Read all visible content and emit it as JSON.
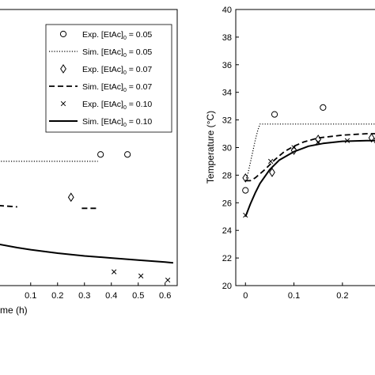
{
  "chart_data": [
    {
      "type": "scatter",
      "panel": "left",
      "title": "",
      "xlabel": "me (h)",
      "ylabel": "",
      "xlim": [
        -0.02,
        0.645
      ],
      "ylim": [
        20,
        40
      ],
      "x_ticks": [
        0.1,
        0.2,
        0.3,
        0.4,
        0.5,
        0.6
      ],
      "x_tick_labels": [
        "0.1",
        "0.2",
        "0.3",
        "0.4",
        "0.5",
        "0.6"
      ],
      "y_ticks": [],
      "grid": false,
      "legend": {
        "placement": "top-right",
        "entries": [
          {
            "label": "Exp. [EtAc]",
            "sub": "0",
            "suffix": " = 0.05",
            "marker": "circle",
            "line": "none"
          },
          {
            "label": "Sim. [EtAc]",
            "sub": "0",
            "suffix": " = 0.05",
            "marker": "none",
            "line": "dotted"
          },
          {
            "label": "Exp. [EtAc]",
            "sub": "0",
            "suffix": " = 0.07",
            "marker": "diamond",
            "line": "none"
          },
          {
            "label": "Sim. [EtAc]",
            "sub": "0",
            "suffix": " = 0.07",
            "marker": "none",
            "line": "dashed"
          },
          {
            "label": "Exp. [EtAc]",
            "sub": "0",
            "suffix": " = 0.10",
            "marker": "x",
            "line": "none"
          },
          {
            "label": "Sim. [EtAc]",
            "sub": "0",
            "suffix": " = 0.10",
            "marker": "none",
            "line": "solid"
          }
        ]
      },
      "series": [
        {
          "kind": "line",
          "style": "dotted",
          "x": [
            -0.02,
            0.35
          ],
          "y": [
            29.0,
            29.0
          ]
        },
        {
          "kind": "points",
          "marker": "circle",
          "x": [
            0.36,
            0.46
          ],
          "y": [
            29.5,
            29.5
          ]
        },
        {
          "kind": "line",
          "style": "dashed",
          "x": [
            -0.02,
            0.05
          ],
          "y": [
            25.8,
            25.7
          ]
        },
        {
          "kind": "line",
          "style": "dashed",
          "x": [
            0.29,
            0.35
          ],
          "y": [
            25.6,
            25.6
          ]
        },
        {
          "kind": "points",
          "marker": "diamond",
          "x": [
            0.25
          ],
          "y": [
            26.4
          ]
        },
        {
          "kind": "line",
          "style": "solid",
          "x": [
            -0.02,
            0.05,
            0.1,
            0.2,
            0.3,
            0.4,
            0.5,
            0.6,
            0.63
          ],
          "y": [
            23.0,
            22.75,
            22.6,
            22.35,
            22.15,
            22.0,
            21.85,
            21.7,
            21.65
          ]
        },
        {
          "kind": "points",
          "marker": "x",
          "x": [
            0.41,
            0.51,
            0.61
          ],
          "y": [
            21.0,
            20.7,
            20.4
          ]
        }
      ]
    },
    {
      "type": "scatter",
      "panel": "right",
      "title": "",
      "xlabel": "",
      "ylabel": "Temperature (°C)",
      "xlim": [
        -0.02,
        0.29
      ],
      "ylim": [
        20,
        40
      ],
      "x_ticks": [
        0,
        0.1,
        0.2
      ],
      "x_tick_labels": [
        "0",
        "0.1",
        "0.2"
      ],
      "y_ticks": [
        20,
        22,
        24,
        26,
        28,
        30,
        32,
        34,
        36,
        38,
        40
      ],
      "y_tick_labels": [
        "20",
        "22",
        "24",
        "26",
        "28",
        "30",
        "32",
        "34",
        "36",
        "38",
        "40"
      ],
      "grid": false,
      "series": [
        {
          "kind": "line",
          "style": "dotted",
          "x": [
            0,
            0.005,
            0.01,
            0.015,
            0.02,
            0.025,
            0.03,
            0.05,
            0.29
          ],
          "y": [
            27.6,
            28.1,
            28.9,
            29.7,
            30.5,
            31.2,
            31.7,
            31.7,
            31.7
          ]
        },
        {
          "kind": "points",
          "marker": "circle",
          "x": [
            0,
            0.06,
            0.16,
            0.28
          ],
          "y": [
            26.9,
            32.4,
            32.9,
            32.6
          ]
        },
        {
          "kind": "line",
          "style": "dashed",
          "x": [
            0,
            0.01,
            0.02,
            0.04,
            0.06,
            0.08,
            0.1,
            0.12,
            0.15,
            0.2,
            0.25,
            0.29
          ],
          "y": [
            27.6,
            27.6,
            27.8,
            28.4,
            29.1,
            29.7,
            30.1,
            30.4,
            30.7,
            30.9,
            31.0,
            31.0
          ]
        },
        {
          "kind": "points",
          "marker": "diamond",
          "x": [
            0,
            0.055,
            0.1,
            0.15,
            0.26
          ],
          "y": [
            27.8,
            28.2,
            29.8,
            30.6,
            30.7
          ]
        },
        {
          "kind": "line",
          "style": "solid",
          "x": [
            0,
            0.01,
            0.02,
            0.03,
            0.05,
            0.07,
            0.1,
            0.13,
            0.16,
            0.2,
            0.25,
            0.29
          ],
          "y": [
            25.0,
            25.9,
            26.7,
            27.4,
            28.4,
            29.1,
            29.7,
            30.1,
            30.3,
            30.45,
            30.5,
            30.5
          ]
        },
        {
          "kind": "points",
          "marker": "x",
          "x": [
            0,
            0.052,
            0.1,
            0.15,
            0.21,
            0.27
          ],
          "y": [
            25.1,
            29.0,
            30.0,
            30.4,
            30.5,
            30.5
          ]
        }
      ]
    }
  ]
}
